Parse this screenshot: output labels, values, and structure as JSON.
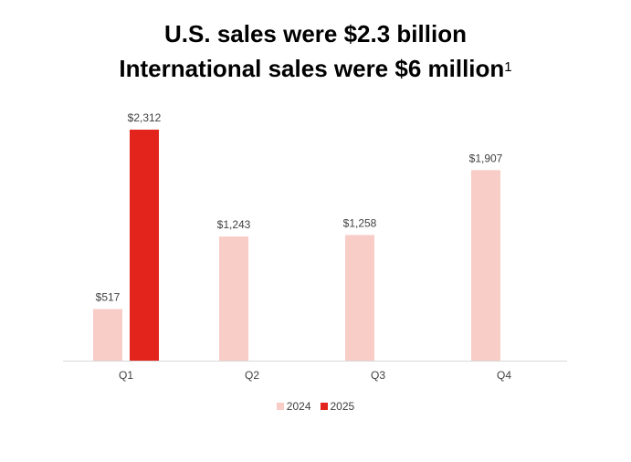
{
  "header": {
    "title_line1": "U.S. sales were $2.3 billion",
    "title_line2": "International sales were $6 million",
    "footnote_marker": "1"
  },
  "colors": {
    "series_2024": "#f9cdc7",
    "series_2025": "#e3241d",
    "axis": "#d9d9d9",
    "text": "#404040"
  },
  "chart_data": {
    "type": "bar",
    "title": "U.S. sales were $2.3 billion / International sales were $6 million",
    "categories": [
      "Q1",
      "Q2",
      "Q3",
      "Q4"
    ],
    "series": [
      {
        "name": "2024",
        "values": [
          517,
          1243,
          1258,
          1907
        ],
        "labels": [
          "$517",
          "$1,243",
          "$1,258",
          "$1,907"
        ]
      },
      {
        "name": "2025",
        "values": [
          2312,
          null,
          null,
          null
        ],
        "labels": [
          "$2,312",
          null,
          null,
          null
        ]
      }
    ],
    "ylim": [
      0,
      2312
    ],
    "grid": false,
    "legend_position": "bottom"
  }
}
